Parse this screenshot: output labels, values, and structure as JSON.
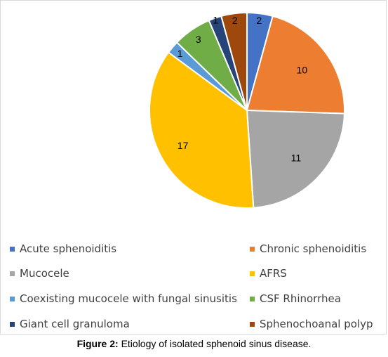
{
  "chart_data": {
    "type": "pie",
    "title": "",
    "categories": [
      "Acute sphenoiditis",
      "Chronic sphenoiditis",
      "Mucocele",
      "AFRS",
      "Coexisting mucocele with fungal sinusitis",
      "CSF Rhinorrhea",
      "Giant cell granuloma",
      "Sphenochoanal polyp"
    ],
    "values": [
      2,
      10,
      11,
      17,
      1,
      3,
      1,
      2
    ],
    "colors": [
      "#4472C4",
      "#ED7D31",
      "#A5A5A5",
      "#FFC000",
      "#5B9BD5",
      "#70AD47",
      "#264478",
      "#9E480E"
    ],
    "data_labels": [
      "2",
      "10",
      "11",
      "17",
      "1",
      "3",
      "1",
      "2"
    ],
    "legend_placement": "bottom"
  },
  "caption": {
    "label": "Figure 2:",
    "text": " Etiology of isolated sphenoid sinus disease."
  }
}
